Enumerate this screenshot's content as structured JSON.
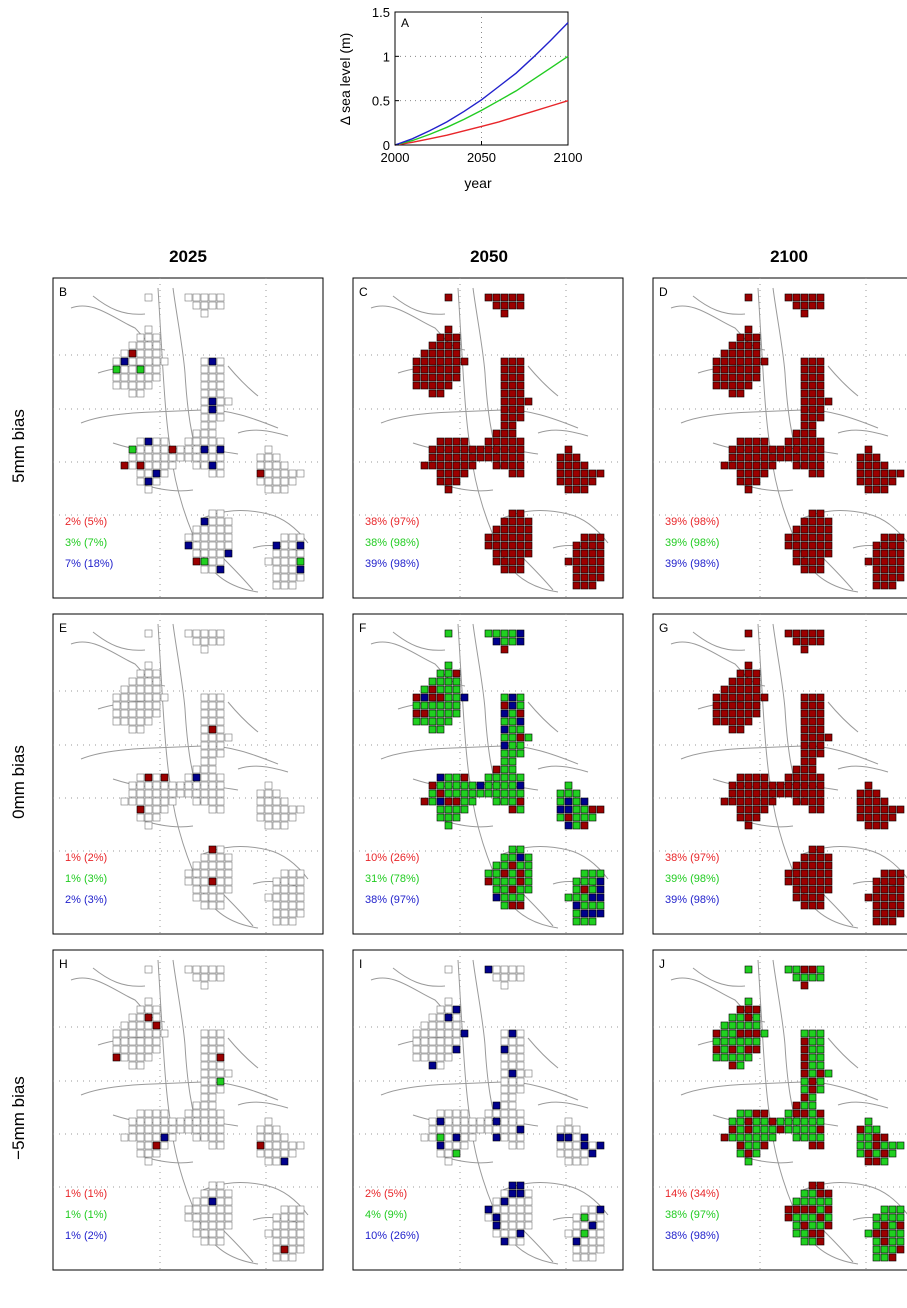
{
  "colors": {
    "red": "#e8262a",
    "green": "#22cc22",
    "blue": "#2222cc",
    "cell_red": "#9b0000",
    "cell_green": "#20d020",
    "cell_blue": "#00008c"
  },
  "chart_data": [
    {
      "type": "line",
      "panel_label": "A",
      "xlabel": "year",
      "ylabel": "Δ sea level (m)",
      "xlim": [
        2000,
        2100
      ],
      "ylim": [
        0,
        1.5
      ],
      "xticks": [
        "2000",
        "2050",
        "2100"
      ],
      "yticks": [
        "0",
        "0.5",
        "1",
        "1.5"
      ],
      "grid": true,
      "x": [
        2000,
        2010,
        2020,
        2030,
        2040,
        2050,
        2060,
        2070,
        2080,
        2090,
        2100
      ],
      "series": [
        {
          "color": "red",
          "values": [
            0,
            0.03,
            0.07,
            0.11,
            0.16,
            0.21,
            0.26,
            0.32,
            0.38,
            0.44,
            0.5
          ]
        },
        {
          "color": "green",
          "values": [
            0,
            0.05,
            0.12,
            0.2,
            0.29,
            0.39,
            0.5,
            0.61,
            0.74,
            0.87,
            1.0
          ]
        },
        {
          "color": "blue",
          "values": [
            0,
            0.07,
            0.16,
            0.26,
            0.38,
            0.51,
            0.66,
            0.81,
            0.99,
            1.18,
            1.38
          ]
        }
      ]
    },
    {
      "type": "heatmap",
      "column_titles": [
        "2025",
        "2050",
        "2100"
      ],
      "row_titles": [
        "5mm bias",
        "0mm bias",
        "−5mm bias"
      ],
      "panels": [
        {
          "label": "B",
          "row": 0,
          "col": 0,
          "dominant": "none",
          "scatter": "mixed",
          "red": "2% (5%)",
          "green": "3% (7%)",
          "blue": "7% (18%)"
        },
        {
          "label": "C",
          "row": 0,
          "col": 1,
          "dominant": "red",
          "scatter": "none",
          "red": "38% (97%)",
          "green": "38% (98%)",
          "blue": "39% (98%)"
        },
        {
          "label": "D",
          "row": 0,
          "col": 2,
          "dominant": "red",
          "scatter": "none",
          "red": "39% (98%)",
          "green": "39% (98%)",
          "blue": "39% (98%)"
        },
        {
          "label": "E",
          "row": 1,
          "col": 0,
          "dominant": "none",
          "scatter": "sparse",
          "red": "1% (2%)",
          "green": "1% (3%)",
          "blue": "2% (3%)"
        },
        {
          "label": "F",
          "row": 1,
          "col": 1,
          "dominant": "green",
          "scatter": "redblue",
          "red": "10% (26%)",
          "green": "31% (78%)",
          "blue": "38% (97%)"
        },
        {
          "label": "G",
          "row": 1,
          "col": 2,
          "dominant": "red",
          "scatter": "none",
          "red": "38% (97%)",
          "green": "39% (98%)",
          "blue": "39% (98%)"
        },
        {
          "label": "H",
          "row": 2,
          "col": 0,
          "dominant": "none",
          "scatter": "sparse",
          "red": "1% (1%)",
          "green": "1% (1%)",
          "blue": "1% (2%)"
        },
        {
          "label": "I",
          "row": 2,
          "col": 1,
          "dominant": "none",
          "scatter": "blue",
          "red": "2% (5%)",
          "green": "4% (9%)",
          "blue": "10% (26%)"
        },
        {
          "label": "J",
          "row": 2,
          "col": 2,
          "dominant": "green",
          "scatter": "red",
          "red": "14% (34%)",
          "green": "38% (97%)",
          "blue": "38% (98%)"
        }
      ]
    }
  ]
}
